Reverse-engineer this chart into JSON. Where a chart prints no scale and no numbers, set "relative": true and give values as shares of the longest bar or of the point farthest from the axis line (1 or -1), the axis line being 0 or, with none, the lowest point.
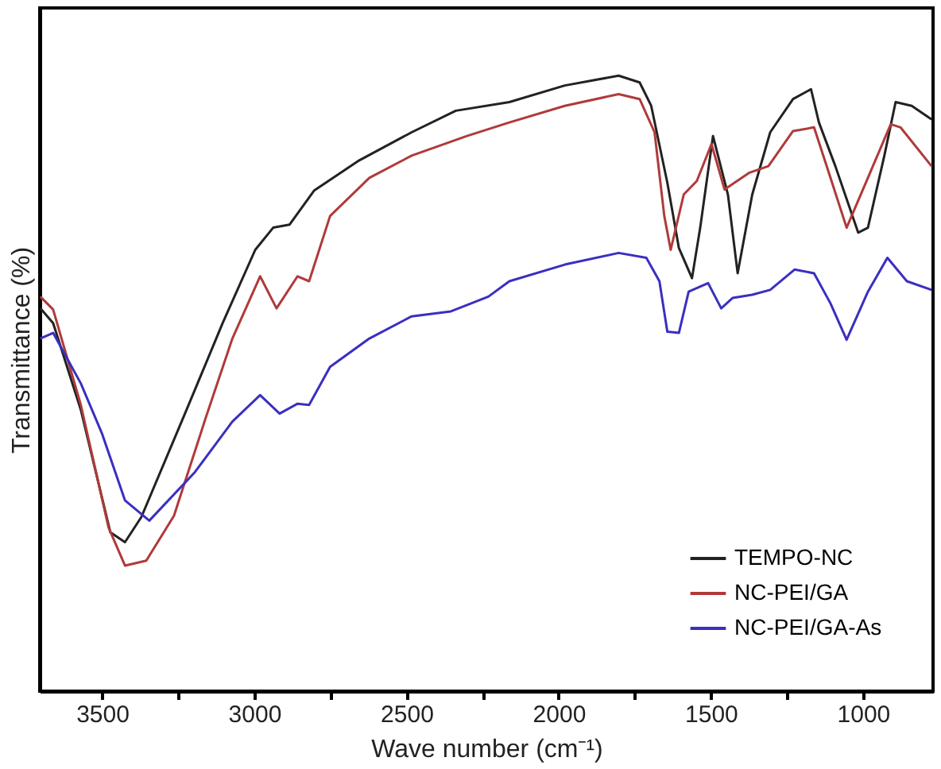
{
  "chart_data": {
    "type": "line",
    "xlabel": "Wave number (cm⁻¹)",
    "ylabel": "Transmittance (%)",
    "relative": true,
    "xlim": [
      3705,
      770
    ],
    "xticks": [
      3500,
      {
        "value": 3250,
        "label": null
      },
      3000,
      {
        "value": 2750,
        "label": null
      },
      2500,
      {
        "value": 2250,
        "label": null
      },
      2000,
      {
        "value": 1750,
        "label": null
      },
      1500,
      {
        "value": 1250,
        "label": null
      },
      1000
    ],
    "tick_labels": "x",
    "legend": "bottom right",
    "grid": false,
    "marker": "none",
    "line_style": "solid",
    "series": [
      {
        "name": "TEMPO-NC",
        "color": "#222222",
        "x": [
          3703,
          3661,
          3570,
          3473,
          3425,
          3371,
          3232,
          3104,
          2997,
          2938,
          2884,
          2804,
          2660,
          2483,
          2338,
          2162,
          1980,
          1803,
          1734,
          1696,
          1643,
          1605,
          1562,
          1535,
          1493,
          1444,
          1412,
          1364,
          1305,
          1230,
          1171,
          1145,
          1091,
          1016,
          984,
          930,
          893,
          840,
          775
        ],
        "values": [
          0.622,
          0.598,
          0.457,
          0.258,
          0.242,
          0.283,
          0.446,
          0.598,
          0.717,
          0.753,
          0.758,
          0.813,
          0.861,
          0.908,
          0.943,
          0.957,
          0.984,
          1.0,
          0.989,
          0.951,
          0.826,
          0.72,
          0.671,
          0.753,
          0.902,
          0.807,
          0.679,
          0.807,
          0.908,
          0.962,
          0.978,
          0.924,
          0.853,
          0.745,
          0.753,
          0.87,
          0.957,
          0.951,
          0.929
        ]
      },
      {
        "name": "NC-PEI/GA",
        "color": "#b03a3a",
        "x": [
          3703,
          3661,
          3570,
          3479,
          3425,
          3355,
          3264,
          3157,
          3072,
          2981,
          2927,
          2858,
          2820,
          2751,
          2622,
          2483,
          2301,
          2162,
          1980,
          1803,
          1734,
          1685,
          1653,
          1632,
          1589,
          1546,
          1498,
          1455,
          1375,
          1311,
          1230,
          1161,
          1107,
          1054,
          984,
          909,
          877,
          775
        ],
        "values": [
          0.641,
          0.62,
          0.465,
          0.266,
          0.204,
          0.212,
          0.285,
          0.448,
          0.573,
          0.674,
          0.622,
          0.674,
          0.666,
          0.772,
          0.834,
          0.87,
          0.902,
          0.924,
          0.951,
          0.97,
          0.962,
          0.908,
          0.772,
          0.717,
          0.807,
          0.829,
          0.889,
          0.815,
          0.842,
          0.853,
          0.91,
          0.916,
          0.834,
          0.753,
          0.834,
          0.921,
          0.916,
          0.853
        ]
      },
      {
        "name": "NC-PEI/GA-As",
        "color": "#3a2fc0",
        "x": [
          3703,
          3661,
          3570,
          3500,
          3425,
          3345,
          3195,
          3072,
          2981,
          2917,
          2858,
          2820,
          2751,
          2622,
          2483,
          2354,
          2231,
          2162,
          1980,
          1803,
          1712,
          1669,
          1643,
          1605,
          1573,
          1509,
          1466,
          1428,
          1364,
          1305,
          1225,
          1161,
          1107,
          1054,
          984,
          920,
          856,
          775
        ],
        "values": [
          0.573,
          0.582,
          0.5,
          0.418,
          0.31,
          0.277,
          0.356,
          0.438,
          0.481,
          0.451,
          0.467,
          0.465,
          0.527,
          0.573,
          0.609,
          0.617,
          0.641,
          0.666,
          0.693,
          0.712,
          0.704,
          0.666,
          0.584,
          0.582,
          0.649,
          0.663,
          0.622,
          0.639,
          0.644,
          0.652,
          0.685,
          0.679,
          0.63,
          0.571,
          0.649,
          0.704,
          0.666,
          0.652
        ]
      }
    ]
  }
}
